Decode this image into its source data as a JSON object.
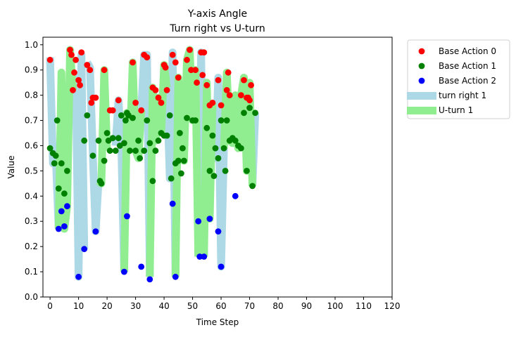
{
  "chart_data": {
    "type": "scatter",
    "title": "Y-axis Angle",
    "subtitle": "Turn right vs U-turn",
    "xlabel": "Time Step",
    "ylabel": "Value",
    "xlim": [
      -2.5,
      120
    ],
    "ylim": [
      0,
      1.03
    ],
    "x_ticks": [
      0,
      10,
      20,
      30,
      40,
      50,
      60,
      70,
      80,
      90,
      100,
      110,
      120
    ],
    "y_ticks": [
      0.0,
      0.1,
      0.2,
      0.3,
      0.4,
      0.5,
      0.6,
      0.7,
      0.8,
      0.9,
      1.0
    ],
    "x_tick_labels": [
      "0",
      "10",
      "20",
      "30",
      "40",
      "50",
      "60",
      "70",
      "80",
      "90",
      "100",
      "110",
      "120"
    ],
    "y_tick_labels": [
      "0.0",
      "0.1",
      "0.2",
      "0.3",
      "0.4",
      "0.5",
      "0.6",
      "0.7",
      "0.8",
      "0.9",
      "1.0"
    ],
    "grid": false,
    "legend_position": "outside-right",
    "legend": [
      {
        "label": "Base Action 0",
        "kind": "marker",
        "color": "#ff0000"
      },
      {
        "label": "Base Action 1",
        "kind": "marker",
        "color": "#008000"
      },
      {
        "label": "Base Action 2",
        "kind": "marker",
        "color": "#0000ff"
      },
      {
        "label": "turn right 1",
        "kind": "band",
        "color": "#add8e6"
      },
      {
        "label": "U-turn 1",
        "kind": "band",
        "color": "#90ee90"
      }
    ],
    "bands": [
      {
        "name": "turn right 1",
        "color": "#add8e6",
        "segments": [
          [
            [
              0,
              0.95
            ],
            [
              1,
              0.53
            ],
            [
              2,
              0.56
            ],
            [
              3,
              0.27
            ]
          ],
          [
            [
              8,
              0.82
            ],
            [
              9,
              0.88
            ],
            [
              10,
              0.08
            ],
            [
              11,
              0.96
            ],
            [
              12,
              0.19
            ]
          ],
          [
            [
              13,
              0.93
            ],
            [
              14,
              0.91
            ],
            [
              15,
              0.56
            ],
            [
              16,
              0.26
            ],
            [
              17,
              0.46
            ]
          ],
          [
            [
              23,
              0.6
            ],
            [
              24,
              0.78
            ],
            [
              25,
              0.61
            ],
            [
              26,
              0.1
            ]
          ],
          [
            [
              32,
              0.74
            ],
            [
              33,
              0.96
            ],
            [
              34,
              0.96
            ],
            [
              35,
              0.08
            ]
          ],
          [
            [
              41,
              0.83
            ],
            [
              42,
              0.47
            ],
            [
              43,
              0.97
            ],
            [
              44,
              0.08
            ]
          ],
          [
            [
              52,
              0.16
            ],
            [
              53,
              0.97
            ],
            [
              54,
              0.16
            ]
          ],
          [
            [
              57,
              0.77
            ],
            [
              58,
              0.55
            ],
            [
              59,
              0.87
            ],
            [
              60,
              0.12
            ],
            [
              61,
              0.59
            ]
          ],
          [
            [
              71,
              0.44
            ],
            [
              72,
              0.73
            ]
          ]
        ]
      },
      {
        "name": "U-turn 1",
        "color": "#90ee90",
        "segments": [
          [
            [
              3,
              0.27
            ],
            [
              4,
              0.89
            ],
            [
              5,
              0.27
            ],
            [
              6,
              0.36
            ],
            [
              7,
              0.98
            ],
            [
              8,
              0.82
            ]
          ],
          [
            [
              17,
              0.46
            ],
            [
              18,
              0.45
            ],
            [
              19,
              0.9
            ],
            [
              20,
              0.58
            ]
          ],
          [
            [
              26,
              0.1
            ],
            [
              27,
              0.73
            ],
            [
              28,
              0.59
            ],
            [
              29,
              0.93
            ],
            [
              30,
              0.58
            ],
            [
              31,
              0.55
            ],
            [
              32,
              0.74
            ]
          ],
          [
            [
              35,
              0.08
            ],
            [
              36,
              0.83
            ],
            [
              37,
              0.62
            ],
            [
              38,
              0.79
            ],
            [
              39,
              0.65
            ],
            [
              40,
              0.92
            ],
            [
              41,
              0.83
            ]
          ],
          [
            [
              44,
              0.08
            ],
            [
              45,
              0.87
            ],
            [
              46,
              0.59
            ],
            [
              47,
              0.54
            ],
            [
              48,
              0.94
            ],
            [
              49,
              0.98
            ],
            [
              50,
              0.7
            ],
            [
              51,
              0.9
            ],
            [
              52,
              0.16
            ]
          ],
          [
            [
              54,
              0.16
            ],
            [
              55,
              0.85
            ],
            [
              56,
              0.31
            ],
            [
              57,
              0.77
            ]
          ],
          [
            [
              61,
              0.59
            ],
            [
              62,
              0.89
            ],
            [
              63,
              0.62
            ],
            [
              64,
              0.61
            ],
            [
              65,
              0.8
            ],
            [
              66,
              0.59
            ],
            [
              67,
              0.8
            ],
            [
              68,
              0.87
            ],
            [
              69,
              0.5
            ],
            [
              70,
              0.85
            ],
            [
              71,
              0.44
            ]
          ]
        ]
      }
    ],
    "series": [
      {
        "name": "Base Action 0",
        "color": "#ff0000",
        "points": [
          [
            0,
            0.94
          ],
          [
            7,
            0.98
          ],
          [
            7.5,
            0.96
          ],
          [
            8,
            0.82
          ],
          [
            8.5,
            0.89
          ],
          [
            9,
            0.94
          ],
          [
            10,
            0.86
          ],
          [
            10.5,
            0.84
          ],
          [
            11,
            0.97
          ],
          [
            13,
            0.92
          ],
          [
            14,
            0.9
          ],
          [
            14.5,
            0.77
          ],
          [
            15,
            0.79
          ],
          [
            16,
            0.79
          ],
          [
            19,
            0.9
          ],
          [
            21,
            0.74
          ],
          [
            22,
            0.74
          ],
          [
            24,
            0.78
          ],
          [
            29,
            0.93
          ],
          [
            30,
            0.77
          ],
          [
            32,
            0.74
          ],
          [
            33,
            0.96
          ],
          [
            34,
            0.95
          ],
          [
            36,
            0.83
          ],
          [
            37,
            0.82
          ],
          [
            38,
            0.79
          ],
          [
            39,
            0.77
          ],
          [
            40,
            0.92
          ],
          [
            40.5,
            0.91
          ],
          [
            41,
            0.82
          ],
          [
            43,
            0.96
          ],
          [
            44,
            0.93
          ],
          [
            45,
            0.87
          ],
          [
            48,
            0.94
          ],
          [
            49,
            0.98
          ],
          [
            49.5,
            0.9
          ],
          [
            51,
            0.9
          ],
          [
            51.5,
            0.85
          ],
          [
            53,
            0.97
          ],
          [
            53.5,
            0.88
          ],
          [
            54,
            0.97
          ],
          [
            55,
            0.84
          ],
          [
            56,
            0.76
          ],
          [
            57,
            0.77
          ],
          [
            59,
            0.86
          ],
          [
            60,
            0.76
          ],
          [
            62,
            0.82
          ],
          [
            63,
            0.8
          ],
          [
            62.5,
            0.89
          ],
          [
            67,
            0.8
          ],
          [
            68,
            0.86
          ],
          [
            69,
            0.79
          ],
          [
            69.5,
            0.79
          ],
          [
            70,
            0.78
          ],
          [
            70.5,
            0.84
          ]
        ]
      },
      {
        "name": "Base Action 1",
        "color": "#008000",
        "points": [
          [
            0,
            0.59
          ],
          [
            1,
            0.57
          ],
          [
            1.5,
            0.53
          ],
          [
            2,
            0.56
          ],
          [
            2.5,
            0.7
          ],
          [
            3,
            0.43
          ],
          [
            4,
            0.53
          ],
          [
            5,
            0.41
          ],
          [
            6,
            0.5
          ],
          [
            12,
            0.62
          ],
          [
            13,
            0.72
          ],
          [
            15,
            0.56
          ],
          [
            17,
            0.62
          ],
          [
            17.5,
            0.46
          ],
          [
            18,
            0.45
          ],
          [
            19,
            0.54
          ],
          [
            20,
            0.65
          ],
          [
            21,
            0.58
          ],
          [
            20.5,
            0.62
          ],
          [
            22,
            0.63
          ],
          [
            23,
            0.58
          ],
          [
            24,
            0.63
          ],
          [
            24.5,
            0.6
          ],
          [
            25,
            0.72
          ],
          [
            26,
            0.61
          ],
          [
            26.5,
            0.7
          ],
          [
            27,
            0.73
          ],
          [
            27.5,
            0.72
          ],
          [
            28,
            0.58
          ],
          [
            29,
            0.71
          ],
          [
            30,
            0.58
          ],
          [
            31,
            0.62
          ],
          [
            31.5,
            0.55
          ],
          [
            33,
            0.58
          ],
          [
            34,
            0.7
          ],
          [
            35,
            0.61
          ],
          [
            36,
            0.46
          ],
          [
            37,
            0.58
          ],
          [
            38,
            0.62
          ],
          [
            39,
            0.65
          ],
          [
            40,
            0.64
          ],
          [
            41,
            0.64
          ],
          [
            42,
            0.72
          ],
          [
            42.5,
            0.47
          ],
          [
            44,
            0.53
          ],
          [
            45,
            0.54
          ],
          [
            45.5,
            0.65
          ],
          [
            46,
            0.49
          ],
          [
            46.5,
            0.59
          ],
          [
            47,
            0.54
          ],
          [
            48,
            0.71
          ],
          [
            50,
            0.7
          ],
          [
            51,
            0.7
          ],
          [
            55,
            0.67
          ],
          [
            56,
            0.5
          ],
          [
            57,
            0.64
          ],
          [
            57.5,
            0.48
          ],
          [
            58,
            0.59
          ],
          [
            59,
            0.55
          ],
          [
            60,
            0.7
          ],
          [
            61,
            0.59
          ],
          [
            61.5,
            0.5
          ],
          [
            62,
            0.7
          ],
          [
            63,
            0.62
          ],
          [
            64,
            0.63
          ],
          [
            65,
            0.62
          ],
          [
            66,
            0.6
          ],
          [
            67,
            0.59
          ],
          [
            68,
            0.73
          ],
          [
            69,
            0.5
          ],
          [
            70,
            0.75
          ],
          [
            71,
            0.44
          ],
          [
            72,
            0.73
          ]
        ]
      },
      {
        "name": "Base Action 2",
        "color": "#0000ff",
        "points": [
          [
            3,
            0.27
          ],
          [
            4,
            0.34
          ],
          [
            5,
            0.28
          ],
          [
            6,
            0.36
          ],
          [
            10,
            0.08
          ],
          [
            12,
            0.19
          ],
          [
            16,
            0.26
          ],
          [
            26,
            0.1
          ],
          [
            27,
            0.32
          ],
          [
            32,
            0.12
          ],
          [
            35,
            0.07
          ],
          [
            43,
            0.37
          ],
          [
            44,
            0.08
          ],
          [
            52,
            0.3
          ],
          [
            52.5,
            0.16
          ],
          [
            54,
            0.16
          ],
          [
            56,
            0.31
          ],
          [
            59,
            0.26
          ],
          [
            60,
            0.12
          ],
          [
            65,
            0.4
          ]
        ]
      }
    ]
  }
}
